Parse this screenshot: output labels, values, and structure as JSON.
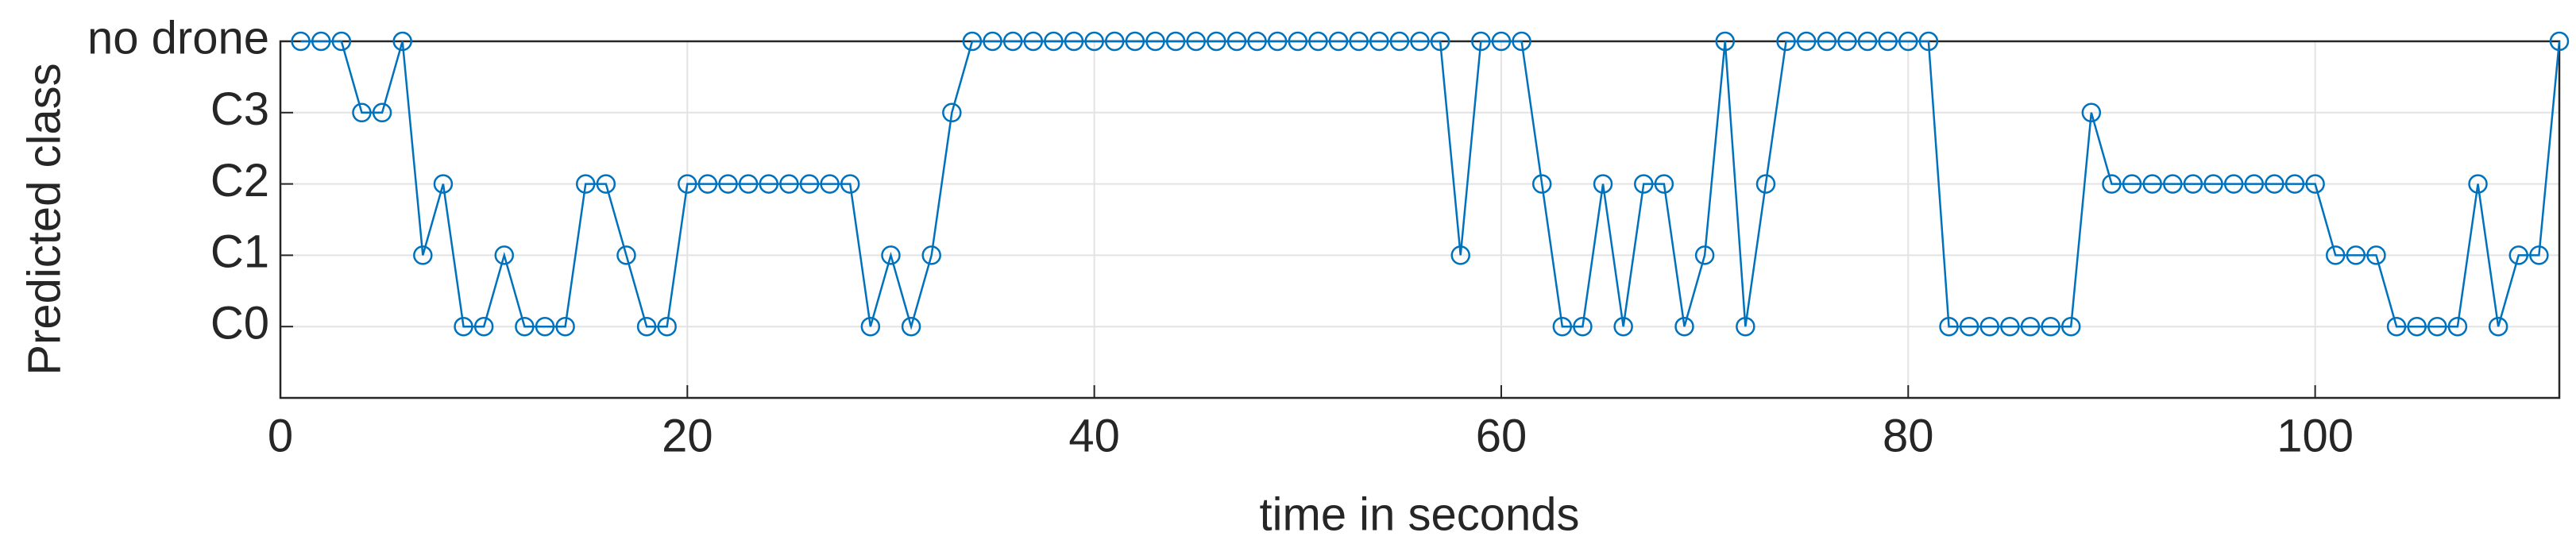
{
  "chart_data": {
    "type": "line",
    "xlabel": "time in seconds",
    "ylabel": "Predicted class",
    "x": [
      1,
      2,
      3,
      4,
      5,
      6,
      7,
      8,
      9,
      10,
      11,
      12,
      13,
      14,
      15,
      16,
      17,
      18,
      19,
      20,
      21,
      22,
      23,
      24,
      25,
      26,
      27,
      28,
      29,
      30,
      31,
      32,
      33,
      34,
      35,
      36,
      37,
      38,
      39,
      40,
      41,
      42,
      43,
      44,
      45,
      46,
      47,
      48,
      49,
      50,
      51,
      52,
      53,
      54,
      55,
      56,
      57,
      58,
      59,
      60,
      61,
      62,
      63,
      64,
      65,
      66,
      67,
      68,
      69,
      70,
      71,
      72,
      73,
      74,
      75,
      76,
      77,
      78,
      79,
      80,
      81,
      82,
      83,
      84,
      85,
      86,
      87,
      88,
      89,
      90,
      91,
      92,
      93,
      94,
      95,
      96,
      97,
      98,
      99,
      100,
      101,
      102,
      103,
      104,
      105,
      106,
      107,
      108,
      109,
      110,
      111,
      112
    ],
    "values": [
      4,
      4,
      4,
      3,
      3,
      4,
      1,
      2,
      0,
      0,
      1,
      0,
      0,
      0,
      2,
      2,
      1,
      0,
      0,
      2,
      2,
      2,
      2,
      2,
      2,
      2,
      2,
      2,
      0,
      1,
      0,
      1,
      3,
      4,
      4,
      4,
      4,
      4,
      4,
      4,
      4,
      4,
      4,
      4,
      4,
      4,
      4,
      4,
      4,
      4,
      4,
      4,
      4,
      4,
      4,
      4,
      4,
      1,
      4,
      4,
      4,
      2,
      0,
      0,
      2,
      0,
      2,
      2,
      0,
      1,
      4,
      0,
      2,
      4,
      4,
      4,
      4,
      4,
      4,
      4,
      4,
      0,
      0,
      0,
      0,
      0,
      0,
      0,
      3,
      2,
      2,
      2,
      2,
      2,
      2,
      2,
      2,
      2,
      2,
      2,
      1,
      1,
      1,
      0,
      0,
      0,
      0,
      2,
      0,
      1,
      1,
      4
    ],
    "color": "#0072bd",
    "xlim": [
      0,
      112
    ],
    "xticks": [
      0,
      20,
      40,
      60,
      80,
      100
    ],
    "ylim": [
      -1,
      4
    ],
    "yticks": [
      {
        "value": 0,
        "label": "C0"
      },
      {
        "value": 1,
        "label": "C1"
      },
      {
        "value": 2,
        "label": "C2"
      },
      {
        "value": 3,
        "label": "C3"
      },
      {
        "value": 4,
        "label": "no drone"
      }
    ],
    "grid": true
  }
}
